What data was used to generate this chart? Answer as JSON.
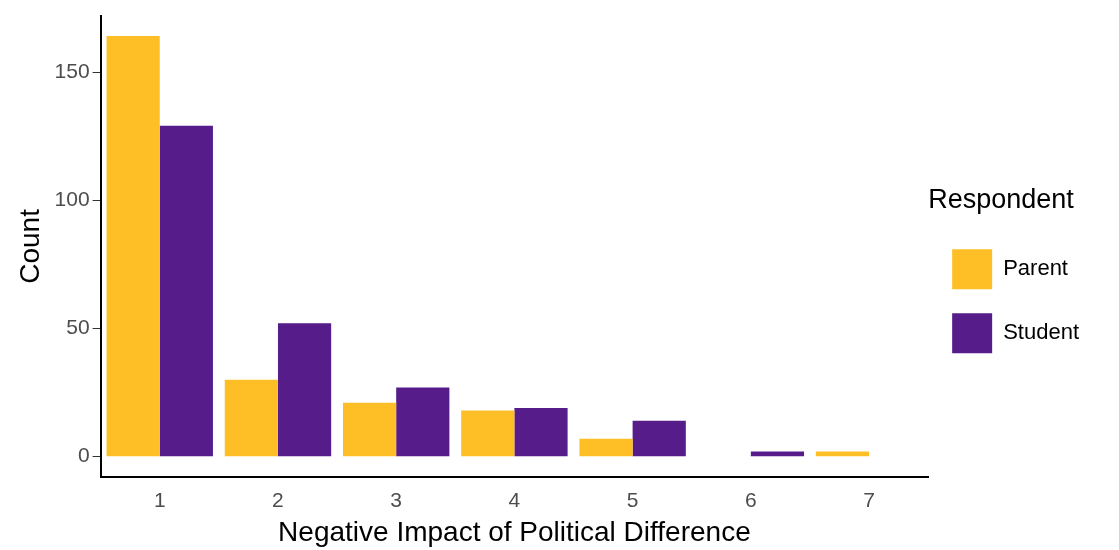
{
  "chart_data": {
    "type": "bar",
    "xlabel": "Negative Impact of Political Difference",
    "ylabel": "Count",
    "legend_title": "Respondent",
    "legend": "right",
    "grid": false,
    "categories": [
      "1",
      "2",
      "3",
      "4",
      "5",
      "6",
      "7"
    ],
    "series": [
      {
        "name": "Parent",
        "color": "#fdbf25",
        "values": [
          164,
          30,
          21,
          18,
          7,
          null,
          2
        ]
      },
      {
        "name": "Student",
        "color": "#561c8a",
        "values": [
          129,
          52,
          27,
          19,
          14,
          2,
          null
        ]
      }
    ],
    "ylim": [
      -8,
      172
    ],
    "yticks": [
      0,
      50,
      100,
      150
    ]
  }
}
